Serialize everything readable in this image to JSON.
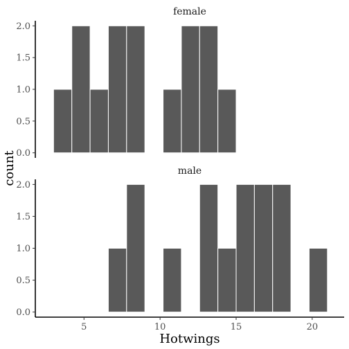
{
  "chart_data": {
    "type": "bar",
    "xlabel": "Hotwings",
    "ylabel": "count",
    "bin_width": 1.2,
    "xlim": [
      1.8,
      22.1
    ],
    "ylim": [
      -0.08,
      2.08
    ],
    "x_ticks": [
      5,
      10,
      15,
      20
    ],
    "y_ticks": [
      0.0,
      0.5,
      1.0,
      1.5,
      2.0
    ],
    "y_tick_labels": [
      "0.0",
      "0.5",
      "1.0",
      "1.5",
      "2.0"
    ],
    "grid": false,
    "bar_color": "#595959",
    "bar_edge_color": "#ffffff",
    "facets": [
      {
        "label": "female",
        "bins": [
          {
            "x": 3.6,
            "count": 1
          },
          {
            "x": 4.8,
            "count": 2
          },
          {
            "x": 6.0,
            "count": 1
          },
          {
            "x": 7.2,
            "count": 2
          },
          {
            "x": 8.4,
            "count": 2
          },
          {
            "x": 9.6,
            "count": 0
          },
          {
            "x": 10.8,
            "count": 1
          },
          {
            "x": 12.0,
            "count": 2
          },
          {
            "x": 13.2,
            "count": 2
          },
          {
            "x": 14.4,
            "count": 1
          }
        ]
      },
      {
        "label": "male",
        "bins": [
          {
            "x": 7.2,
            "count": 1
          },
          {
            "x": 8.4,
            "count": 2
          },
          {
            "x": 9.6,
            "count": 0
          },
          {
            "x": 10.8,
            "count": 1
          },
          {
            "x": 12.0,
            "count": 0
          },
          {
            "x": 13.2,
            "count": 2
          },
          {
            "x": 14.4,
            "count": 1
          },
          {
            "x": 15.6,
            "count": 2
          },
          {
            "x": 16.8,
            "count": 2
          },
          {
            "x": 18.0,
            "count": 2
          },
          {
            "x": 19.2,
            "count": 0
          },
          {
            "x": 20.4,
            "count": 1
          }
        ]
      }
    ]
  }
}
